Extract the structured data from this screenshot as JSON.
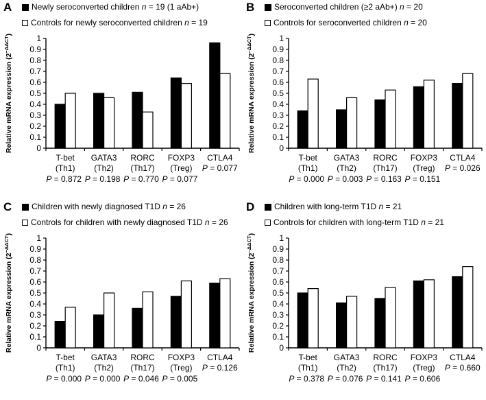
{
  "figure_title": "Relative mRNA expression of T helper subset transcription factors, four-panel bar figure",
  "colors": {
    "bar_case": "#000000",
    "bar_control": "#ffffff",
    "axis": "#000000",
    "text": "#000000",
    "background": "#ffffff"
  },
  "chart_data": [
    {
      "type": "bar",
      "panel": "A",
      "legend": [
        {
          "marker": "filled-square",
          "label": "Newly seroconverted children n = 19 (1 aAb+)"
        },
        {
          "marker": "open-square",
          "label": "Controls for newly seroconverted children n = 19"
        }
      ],
      "categories": [
        "T-bet",
        "GATA3",
        "RORC",
        "FOXP3",
        "CTLA4"
      ],
      "category_sublabels": [
        "(Th1)",
        "(Th2)",
        "(Th17)",
        "(Treg)",
        "P = 0.077"
      ],
      "series": [
        {
          "name": "Newly seroconverted children n = 19 (1 aAb+)",
          "fill": "black",
          "values": [
            0.4,
            0.5,
            0.51,
            0.64,
            0.96
          ]
        },
        {
          "name": "Controls for newly seroconverted children n = 19",
          "fill": "white",
          "values": [
            0.5,
            0.46,
            0.33,
            0.59,
            0.68
          ]
        }
      ],
      "p_values": [
        "P = 0.872",
        "P = 0.198",
        "P = 0.770",
        "P = 0.077"
      ],
      "ylabel_parts": {
        "main": "Relative mRNA expression (2",
        "sup": "−ΔΔCT",
        "end": ")"
      },
      "ylim": [
        0,
        1
      ],
      "ytick_step": 0.1,
      "grid": false,
      "legend_position": "top"
    },
    {
      "type": "bar",
      "panel": "B",
      "legend": [
        {
          "marker": "filled-square",
          "label": "Seroconverted children (≥2 aAb+) n = 20"
        },
        {
          "marker": "open-square",
          "label": "Controls for seroconverted children n = 20"
        }
      ],
      "categories": [
        "T-bet",
        "GATA3",
        "RORC",
        "FOXP3",
        "CTLA4"
      ],
      "category_sublabels": [
        "(Th1)",
        "(Th2)",
        "(Th17)",
        "(Treg)",
        "P = 0.026"
      ],
      "series": [
        {
          "name": "Seroconverted children (≥2 aAb+) n = 20",
          "fill": "black",
          "values": [
            0.34,
            0.35,
            0.44,
            0.56,
            0.59
          ]
        },
        {
          "name": "Controls for seroconverted children n = 20",
          "fill": "white",
          "values": [
            0.63,
            0.46,
            0.53,
            0.62,
            0.68
          ]
        }
      ],
      "p_values": [
        "P = 0.000",
        "P = 0.003",
        "P = 0.163",
        "P = 0.151"
      ],
      "ylabel_parts": {
        "main": "Relative mRNA expression (2",
        "sup": "−ΔΔCT",
        "end": ")"
      },
      "ylim": [
        0,
        1
      ],
      "ytick_step": 0.1,
      "grid": false,
      "legend_position": "top"
    },
    {
      "type": "bar",
      "panel": "C",
      "legend": [
        {
          "marker": "filled-square",
          "label": "Children with newly diagnosed T1D n = 26"
        },
        {
          "marker": "open-square",
          "label": "Controls for children with newly diagnosed T1D n = 26"
        }
      ],
      "categories": [
        "T-bet",
        "GATA3",
        "RORC",
        "FOXP3",
        "CTLA4"
      ],
      "category_sublabels": [
        "(Th1)",
        "(Th2)",
        "(Th17)",
        "(Treg)",
        "P = 0.126"
      ],
      "series": [
        {
          "name": "Children with newly diagnosed T1D n = 26",
          "fill": "black",
          "values": [
            0.24,
            0.3,
            0.36,
            0.47,
            0.59
          ]
        },
        {
          "name": "Controls for children with newly diagnosed T1D n = 26",
          "fill": "white",
          "values": [
            0.37,
            0.5,
            0.51,
            0.61,
            0.63
          ]
        }
      ],
      "p_values": [
        "P = 0.000",
        "P = 0.000",
        "P = 0.046",
        "P = 0.005"
      ],
      "ylabel_parts": {
        "main": "Relative mRNA expression (2",
        "sup": "−ΔΔCT",
        "end": ")"
      },
      "ylim": [
        0,
        1
      ],
      "ytick_step": 0.1,
      "grid": false,
      "legend_position": "top"
    },
    {
      "type": "bar",
      "panel": "D",
      "legend": [
        {
          "marker": "filled-square",
          "label": "Children with long-term T1D n = 21"
        },
        {
          "marker": "open-square",
          "label": "Controls for children with long-term T1D n = 21"
        }
      ],
      "categories": [
        "T-bet",
        "GATA3",
        "RORC",
        "FOXP3",
        "CTLA4"
      ],
      "category_sublabels": [
        "(Th1)",
        "(Th2)",
        "(Th17)",
        "(Treg)",
        "P = 0.660"
      ],
      "series": [
        {
          "name": "Children with long-term T1D n = 21",
          "fill": "black",
          "values": [
            0.5,
            0.41,
            0.45,
            0.61,
            0.65
          ]
        },
        {
          "name": "Controls for children with long-term T1D n = 21",
          "fill": "white",
          "values": [
            0.54,
            0.47,
            0.55,
            0.62,
            0.74
          ]
        }
      ],
      "p_values": [
        "P = 0.378",
        "P = 0.076",
        "P = 0.141",
        "P = 0.606"
      ],
      "ylabel_parts": {
        "main": "Relative mRNA expression (2",
        "sup": "−ΔΔCT",
        "end": ")"
      },
      "ylim": [
        0,
        1
      ],
      "ytick_step": 0.1,
      "grid": false,
      "legend_position": "top"
    }
  ]
}
